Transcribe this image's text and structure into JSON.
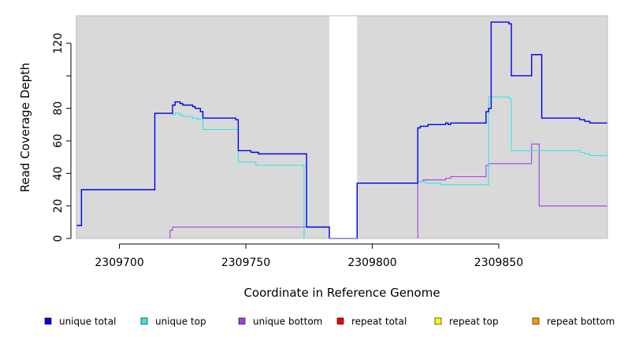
{
  "chart_data": {
    "type": "line",
    "xlabel": "Coordinate in Reference Genome",
    "ylabel": "Read Coverage Depth",
    "xlim": [
      2309683,
      2309893
    ],
    "ylim": [
      0,
      135
    ],
    "x_ticks": [
      2309700,
      2309750,
      2309800,
      2309850
    ],
    "x_tick_labels": [
      "2309700",
      "2309750",
      "2309800",
      "2309850"
    ],
    "y_ticks": [
      0,
      20,
      40,
      60,
      80,
      100,
      120
    ],
    "y_tick_labels": [
      "0",
      "20",
      "40",
      "60",
      "80",
      "",
      "120"
    ],
    "background_color": "#d9d9d9",
    "gap_region": [
      2309783,
      2309794
    ],
    "legend_position": "bottom",
    "series": [
      {
        "name": "unique total",
        "color": "#0000ee",
        "x": [
          2309683,
          2309685,
          2309685,
          2309714,
          2309714,
          2309721,
          2309721,
          2309722,
          2309722,
          2309724,
          2309724,
          2309725,
          2309725,
          2309729,
          2309729,
          2309730,
          2309730,
          2309732,
          2309732,
          2309733,
          2309733,
          2309746,
          2309746,
          2309747,
          2309747,
          2309752,
          2309752,
          2309755,
          2309755,
          2309774,
          2309774,
          2309783,
          2309783,
          2309794,
          2309794,
          2309818,
          2309818,
          2309819,
          2309819,
          2309822,
          2309822,
          2309829,
          2309829,
          2309830,
          2309830,
          2309831,
          2309831,
          2309845,
          2309845,
          2309846,
          2309846,
          2309847,
          2309847,
          2309854,
          2309854,
          2309855,
          2309855,
          2309863,
          2309863,
          2309867,
          2309867,
          2309882,
          2309882,
          2309884,
          2309884,
          2309886,
          2309886,
          2309893
        ],
        "y": [
          8,
          8,
          30,
          30,
          77,
          77,
          82,
          82,
          84,
          84,
          83,
          83,
          82,
          82,
          81,
          81,
          80,
          80,
          78,
          78,
          74,
          74,
          73,
          73,
          54,
          54,
          53,
          53,
          52,
          52,
          7,
          7,
          0,
          0,
          34,
          34,
          68,
          68,
          69,
          69,
          70,
          70,
          71,
          71,
          70,
          70,
          71,
          71,
          78,
          78,
          80,
          80,
          133,
          133,
          132,
          132,
          100,
          100,
          113,
          113,
          74,
          74,
          73,
          73,
          72,
          72,
          71,
          71
        ]
      },
      {
        "name": "unique top",
        "color": "#33e6e6",
        "x": [
          2309683,
          2309685,
          2309685,
          2309714,
          2309714,
          2309721,
          2309721,
          2309722,
          2309722,
          2309724,
          2309724,
          2309725,
          2309725,
          2309729,
          2309729,
          2309731,
          2309731,
          2309733,
          2309733,
          2309747,
          2309747,
          2309754,
          2309754,
          2309773,
          2309773,
          2309783,
          2309783,
          2309794,
          2309794,
          2309818,
          2309818,
          2309821,
          2309821,
          2309827,
          2309827,
          2309846,
          2309846,
          2309854,
          2309854,
          2309855,
          2309855,
          2309882,
          2309882,
          2309884,
          2309884,
          2309886,
          2309886,
          2309893
        ],
        "y": [
          8,
          8,
          30,
          30,
          77,
          77,
          76,
          76,
          77,
          77,
          76,
          76,
          75,
          75,
          74,
          74,
          73,
          73,
          67,
          67,
          47,
          47,
          45,
          45,
          0,
          0,
          0,
          0,
          34,
          34,
          35,
          35,
          34,
          34,
          33,
          33,
          87,
          87,
          86,
          86,
          54,
          54,
          53,
          53,
          52,
          52,
          51,
          51
        ]
      },
      {
        "name": "unique bottom",
        "color": "#a040e6",
        "x": [
          2309683,
          2309720,
          2309720,
          2309721,
          2309721,
          2309774,
          2309774,
          2309783,
          2309783,
          2309818,
          2309818,
          2309820,
          2309820,
          2309829,
          2309829,
          2309831,
          2309831,
          2309845,
          2309845,
          2309846,
          2309846,
          2309863,
          2309863,
          2309866,
          2309866,
          2309893
        ],
        "y": [
          0,
          0,
          5,
          5,
          7,
          7,
          7,
          7,
          0,
          0,
          35,
          35,
          36,
          36,
          37,
          37,
          38,
          38,
          45,
          45,
          46,
          46,
          58,
          58,
          20,
          20
        ]
      },
      {
        "name": "repeat total",
        "color": "#ee0000",
        "x": [
          2309683,
          2309893
        ],
        "y": [
          0,
          0
        ]
      },
      {
        "name": "repeat top",
        "color": "#ffff00",
        "x": [
          2309683,
          2309893
        ],
        "y": [
          0,
          0
        ]
      },
      {
        "name": "repeat bottom",
        "color": "#ff9900",
        "x": [
          2309683,
          2309893
        ],
        "y": [
          0,
          0
        ]
      }
    ]
  }
}
